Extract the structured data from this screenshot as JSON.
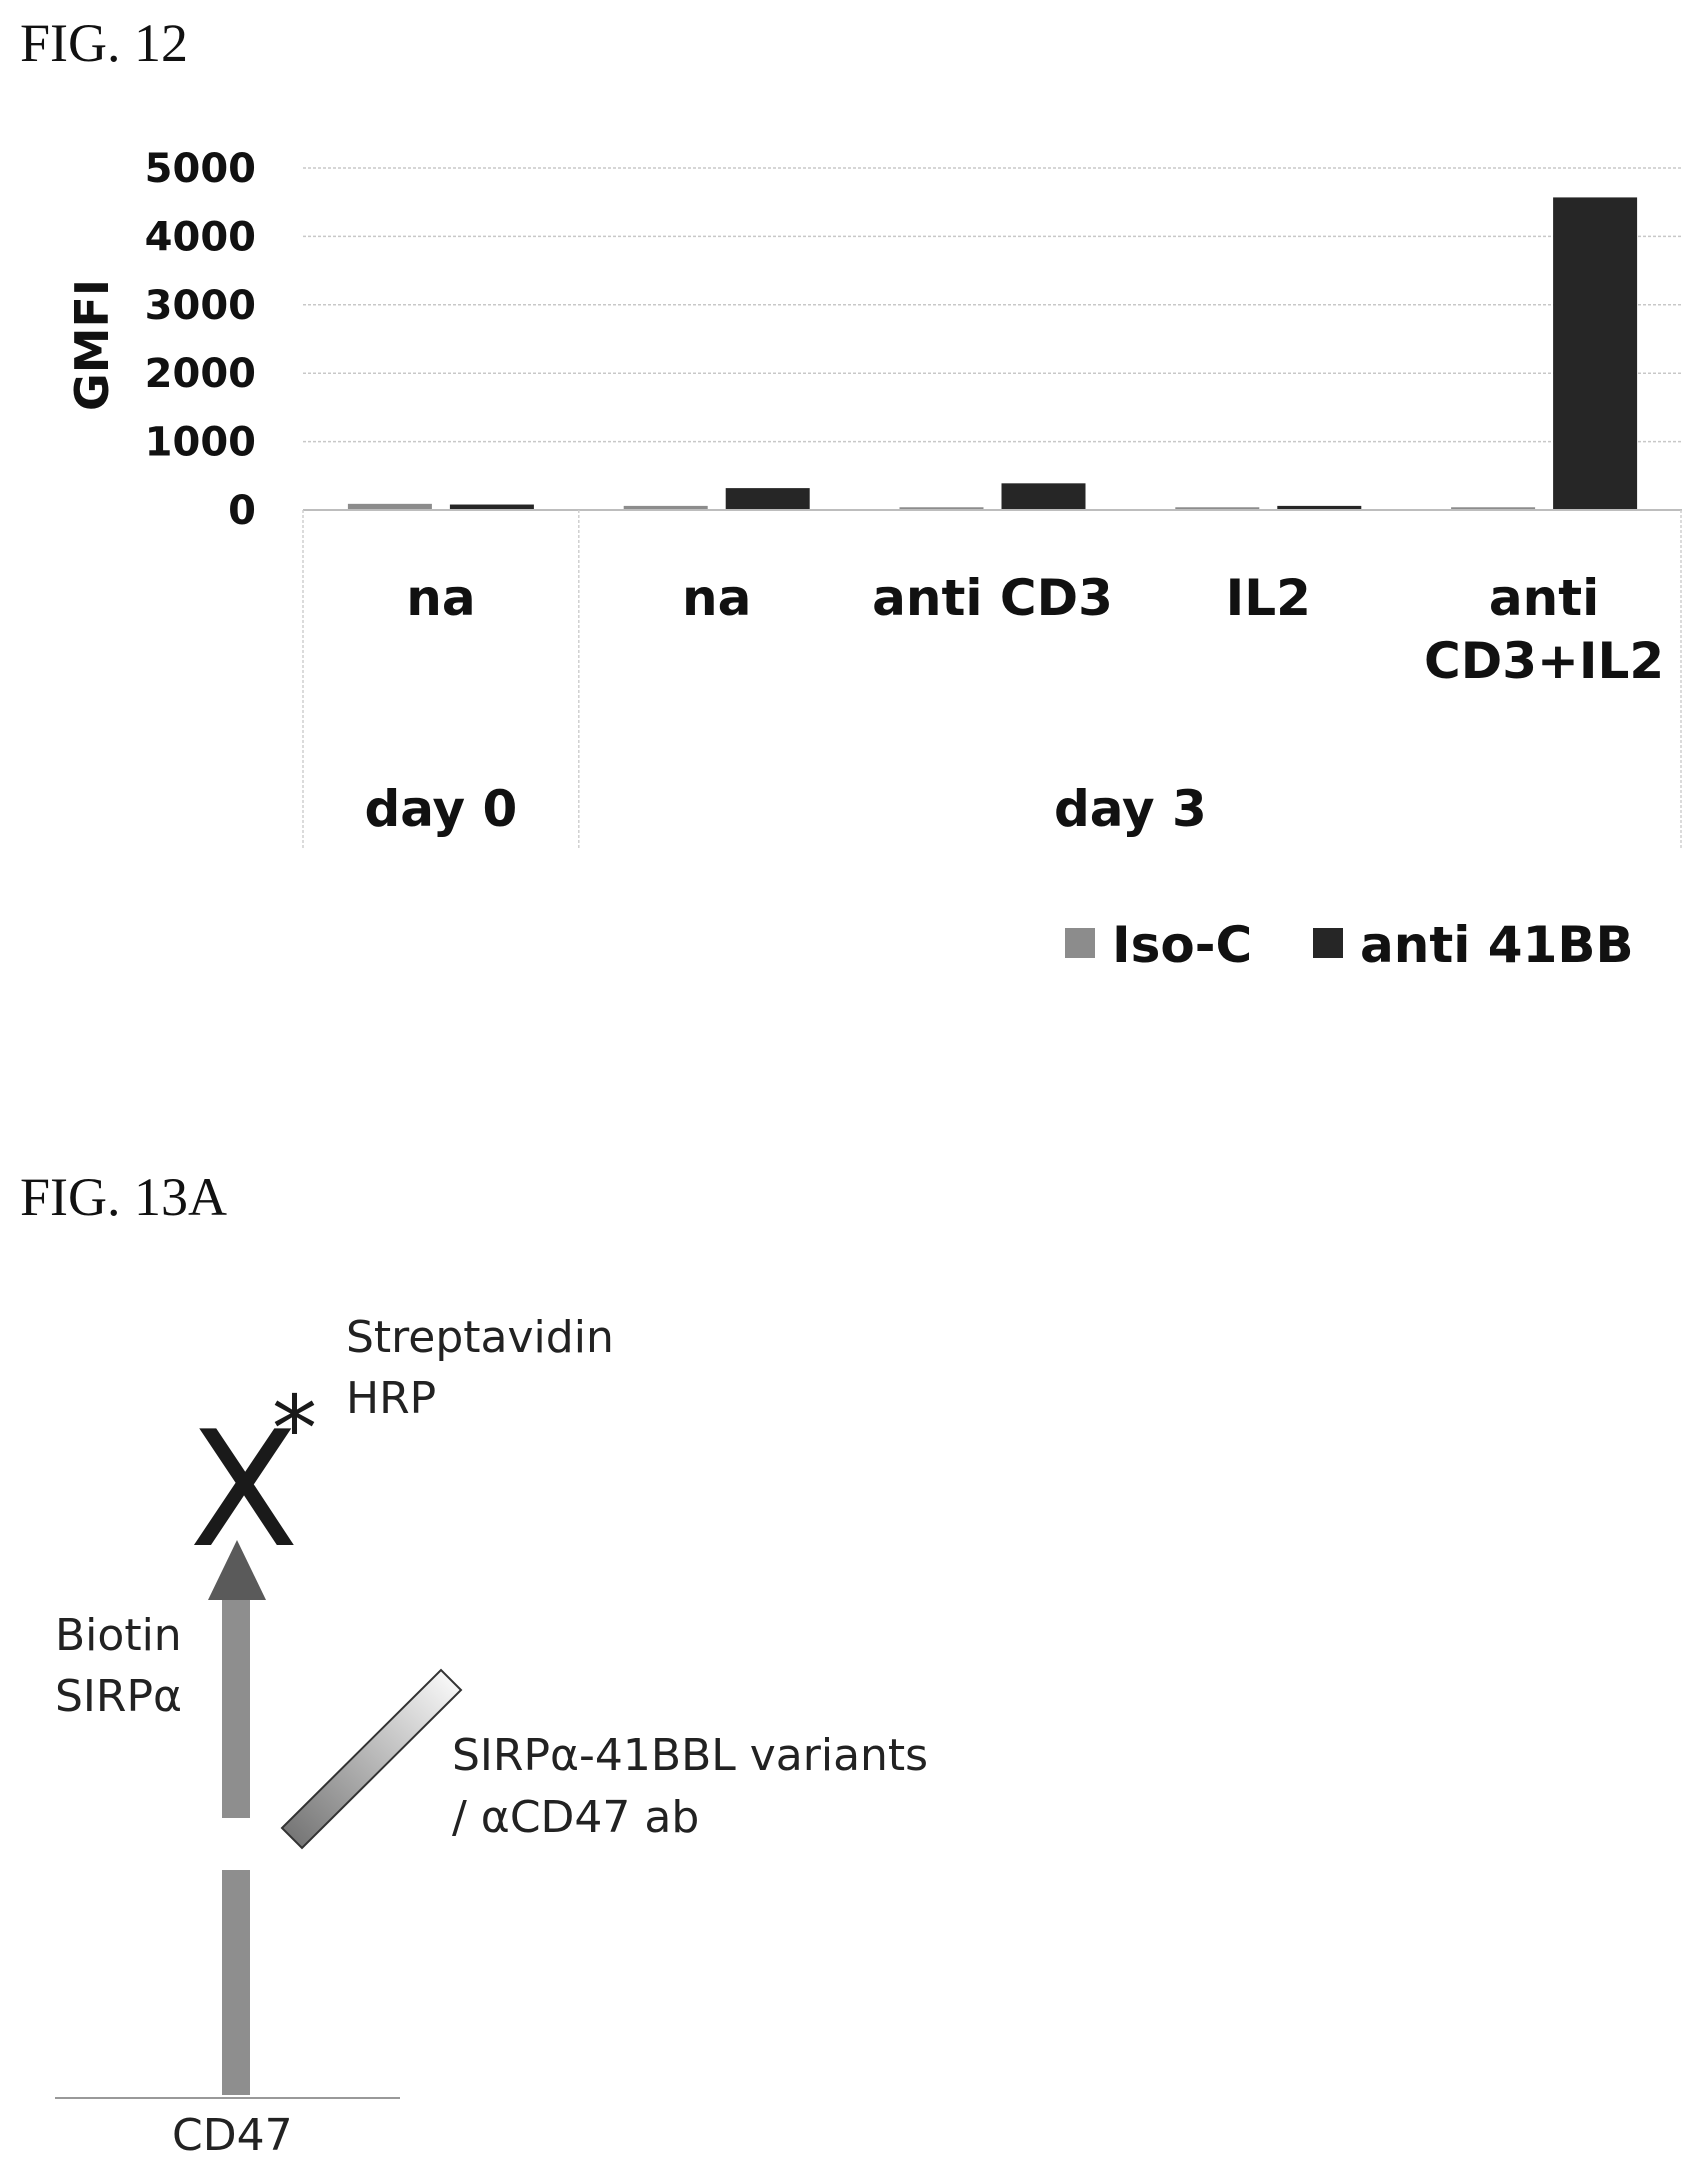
{
  "fig12": {
    "label": "FIG. 12"
  },
  "chart_data": {
    "type": "bar",
    "ylabel": "GMFI",
    "ylim": [
      0,
      5000
    ],
    "yticks": [
      "0",
      "1000",
      "2000",
      "3000",
      "4000",
      "5000"
    ],
    "grid": true,
    "legend_position": "bottom-right",
    "categories": [
      {
        "label": [
          "na"
        ],
        "group": "day 0"
      },
      {
        "label": [
          "na"
        ],
        "group": "day 3"
      },
      {
        "label": [
          "anti CD3"
        ],
        "group": "day 3"
      },
      {
        "label": [
          "IL2"
        ],
        "group": "day 3"
      },
      {
        "label": [
          "anti",
          "CD3+IL2"
        ],
        "group": "day 3"
      }
    ],
    "groups": [
      {
        "label": "day 0",
        "span": 1
      },
      {
        "label": "day 3",
        "span": 4
      }
    ],
    "series": [
      {
        "name": "Iso-C",
        "color": "#8c8c8c",
        "values": [
          90,
          60,
          40,
          40,
          40
        ]
      },
      {
        "name": "anti 41BB",
        "color": "#262626",
        "values": [
          80,
          320,
          390,
          60,
          4570
        ]
      }
    ]
  },
  "fig13a": {
    "label": "FIG. 13A",
    "streptavidin_lines": [
      "Streptavidin",
      "HRP"
    ],
    "x_mark": "X",
    "star": "*",
    "biotin_lines": [
      "Biotin",
      "SIRPα"
    ],
    "variants_lines": [
      "SIRPα-41BBL variants",
      "/ αCD47 ab"
    ],
    "cd47": "CD47"
  }
}
